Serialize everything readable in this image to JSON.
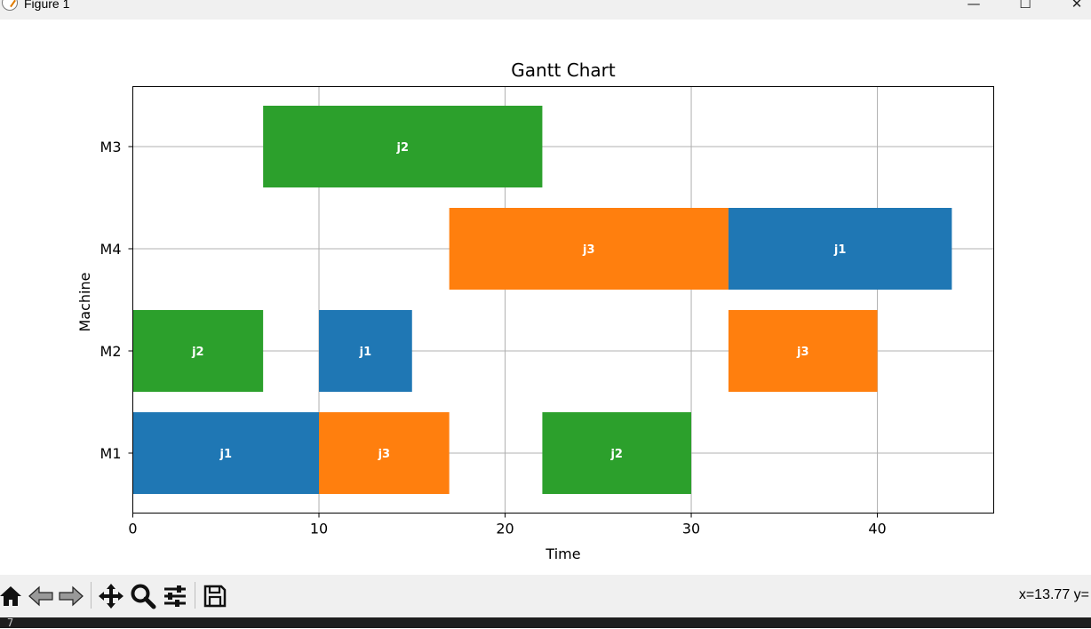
{
  "window": {
    "title": "Figure 1",
    "controls": {
      "minimize": "—",
      "maximize": "☐",
      "close": "✕"
    }
  },
  "toolbar": {
    "buttons": [
      {
        "name": "home-icon"
      },
      {
        "name": "back-icon"
      },
      {
        "name": "forward-icon"
      },
      {
        "name": "pan-icon"
      },
      {
        "name": "zoom-icon"
      },
      {
        "name": "configure-subplots-icon"
      },
      {
        "name": "save-icon"
      }
    ],
    "coords": "x=13.77 y="
  },
  "console": {
    "text": "7"
  },
  "chart_data": {
    "type": "gantt",
    "title": "Gantt Chart",
    "xlabel": "Time",
    "ylabel": "Machine",
    "xlim": [
      0,
      46.25
    ],
    "xticks": [
      0,
      10,
      20,
      30,
      40
    ],
    "categories": [
      "M1",
      "M2",
      "M4",
      "M3"
    ],
    "grid": true,
    "colors": {
      "j1": "#1f77b4",
      "j3": "#ff7f0e",
      "j2": "#2ca02c"
    },
    "tasks": [
      {
        "machine": "M1",
        "job": "j1",
        "start": 0,
        "end": 10
      },
      {
        "machine": "M1",
        "job": "j3",
        "start": 10,
        "end": 17
      },
      {
        "machine": "M1",
        "job": "j2",
        "start": 22,
        "end": 30
      },
      {
        "machine": "M2",
        "job": "j2",
        "start": 0,
        "end": 7
      },
      {
        "machine": "M2",
        "job": "j1",
        "start": 10,
        "end": 15
      },
      {
        "machine": "M2",
        "job": "j3",
        "start": 32,
        "end": 40
      },
      {
        "machine": "M4",
        "job": "j3",
        "start": 17,
        "end": 32
      },
      {
        "machine": "M4",
        "job": "j1",
        "start": 32,
        "end": 44
      },
      {
        "machine": "M3",
        "job": "j2",
        "start": 7,
        "end": 22
      }
    ]
  }
}
